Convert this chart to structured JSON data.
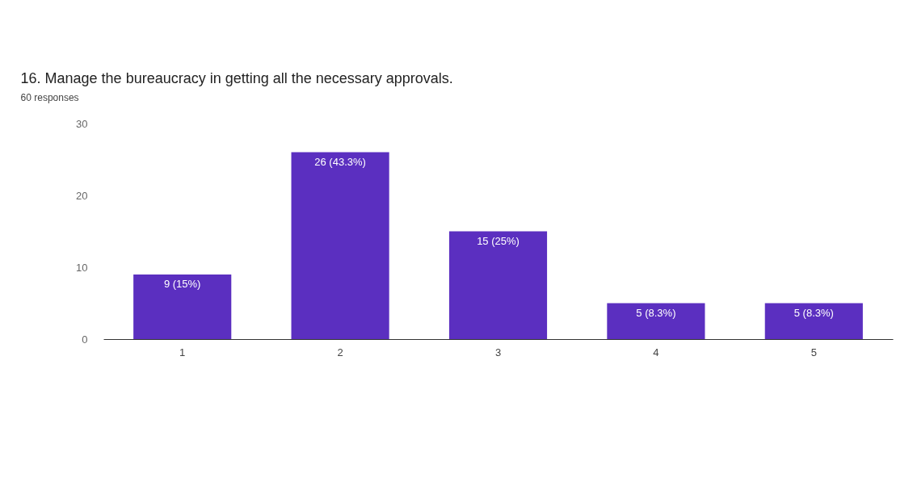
{
  "chart_data": {
    "type": "bar",
    "title": "16. Manage the bureaucracy in getting all the necessary approvals.",
    "subtitle": "60 responses",
    "categories": [
      "1",
      "2",
      "3",
      "4",
      "5"
    ],
    "values": [
      9,
      26,
      15,
      5,
      5
    ],
    "value_labels": [
      "9 (15%)",
      "26 (43.3%)",
      "15 (25%)",
      "5 (8.3%)",
      "5 (8.3%)"
    ],
    "color": "#5b2fc0",
    "ylim": [
      0,
      30
    ],
    "yticks": [
      0,
      10,
      20,
      30
    ],
    "grid": false
  }
}
